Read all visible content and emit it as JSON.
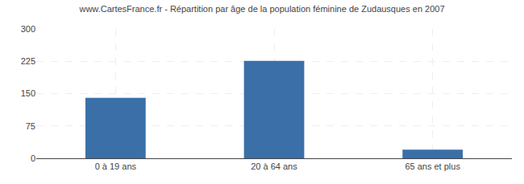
{
  "chart_data": {
    "type": "bar",
    "title": "www.CartesFrance.fr - Répartition par âge de la population féminine de Zudausques en 2007",
    "categories": [
      "0 à 19 ans",
      "20 à 64 ans",
      "65 ans et plus"
    ],
    "values": [
      140,
      226,
      20
    ],
    "color": "#3a6fa8",
    "ylim": [
      0,
      300
    ],
    "yticks": [
      0,
      75,
      150,
      225,
      300
    ],
    "grid": true
  }
}
